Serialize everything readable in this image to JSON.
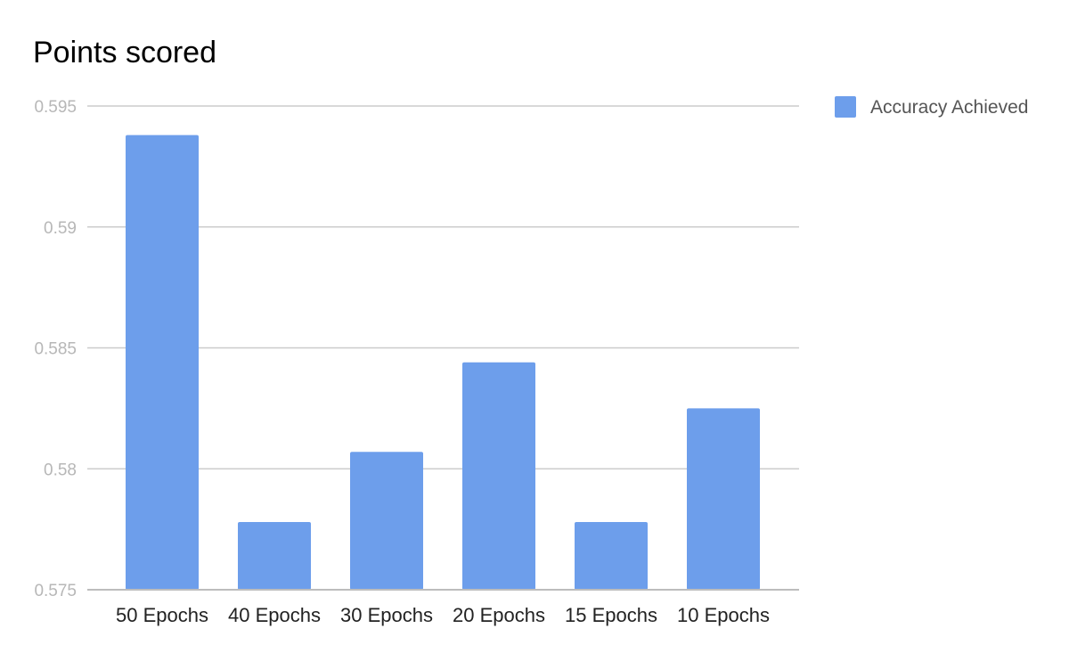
{
  "chart_data": {
    "type": "bar",
    "title": "Points scored",
    "xlabel": "",
    "ylabel": "",
    "categories": [
      "50 Epochs",
      "40 Epochs",
      "30 Epochs",
      "20 Epochs",
      "15 Epochs",
      "10 Epochs"
    ],
    "series": [
      {
        "name": "Accuracy Achieved",
        "values": [
          0.5938,
          0.5778,
          0.5807,
          0.5844,
          0.5778,
          0.5825
        ]
      }
    ],
    "ylim": [
      0.575,
      0.595
    ],
    "yticks": [
      0.575,
      0.58,
      0.585,
      0.59,
      0.595
    ],
    "ytick_labels": [
      "0.575",
      "0.58",
      "0.585",
      "0.59",
      "0.595"
    ],
    "grid": true,
    "legend_position": "top-right",
    "colors": {
      "bar": "#6d9eeb",
      "grid": "#cccccc",
      "tick_text": "#b7b7b7",
      "category_text": "#222222",
      "legend_text": "#555555"
    }
  }
}
